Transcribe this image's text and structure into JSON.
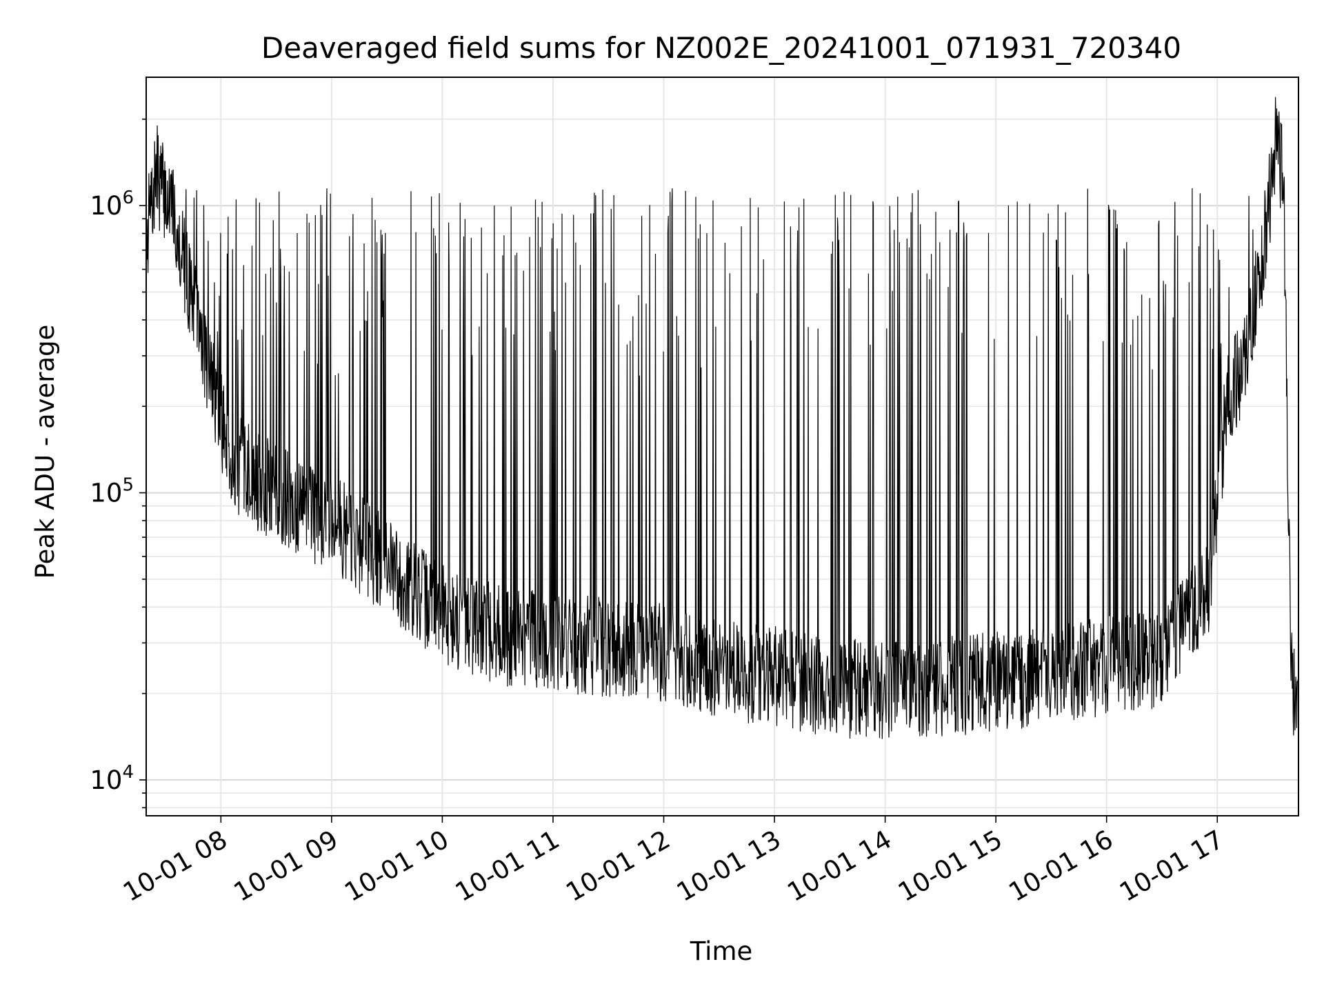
{
  "chart_data": {
    "type": "line",
    "title": "Deaveraged field sums for NZ002E_20241001_071931_720340",
    "xlabel": "Time",
    "ylabel": "Peak ADU - average",
    "yscale": "log",
    "xlim": [
      "2024-10-01 07:19:31",
      "2024-10-01 17:44:00"
    ],
    "ylim": [
      7500,
      2800000
    ],
    "grid": true,
    "line_color": "#000000",
    "x_ticks": [
      "10-01 08",
      "10-01 09",
      "10-01 10",
      "10-01 11",
      "10-01 12",
      "10-01 13",
      "10-01 14",
      "10-01 15",
      "10-01 16",
      "10-01 17"
    ],
    "y_ticks": [
      {
        "value": 10000,
        "base": "10",
        "exp": "4"
      },
      {
        "value": 100000,
        "base": "10",
        "exp": "5"
      },
      {
        "value": 1000000,
        "base": "10",
        "exp": "6"
      }
    ],
    "series": [
      {
        "x": [
          "2024-10-01 07:20",
          "2024-10-01 07:25",
          "2024-10-01 07:35",
          "2024-10-01 07:45",
          "2024-10-01 07:55",
          "2024-10-01 08:05",
          "2024-10-01 08:20",
          "2024-10-01 08:40",
          "2024-10-01 09:00",
          "2024-10-01 09:30",
          "2024-10-01 10:00",
          "2024-10-01 10:30",
          "2024-10-01 11:00",
          "2024-10-01 11:30",
          "2024-10-01 12:00",
          "2024-10-01 12:30",
          "2024-10-01 13:00",
          "2024-10-01 13:30",
          "2024-10-01 14:00",
          "2024-10-01 14:30",
          "2024-10-01 15:00",
          "2024-10-01 15:30",
          "2024-10-01 16:00",
          "2024-10-01 16:30",
          "2024-10-01 16:55",
          "2024-10-01 17:05",
          "2024-10-01 17:15",
          "2024-10-01 17:25",
          "2024-10-01 17:32",
          "2024-10-01 17:36",
          "2024-10-01 17:40",
          "2024-10-01 17:44"
        ],
        "values": [
          800000,
          1300000,
          900000,
          450000,
          250000,
          130000,
          110000,
          90000,
          80000,
          55000,
          38000,
          32000,
          30000,
          29000,
          28000,
          24000,
          23000,
          21000,
          20500,
          21000,
          22000,
          23000,
          25000,
          26000,
          45000,
          200000,
          300000,
          700000,
          1700000,
          1200000,
          23000,
          15000
        ]
      }
    ]
  }
}
